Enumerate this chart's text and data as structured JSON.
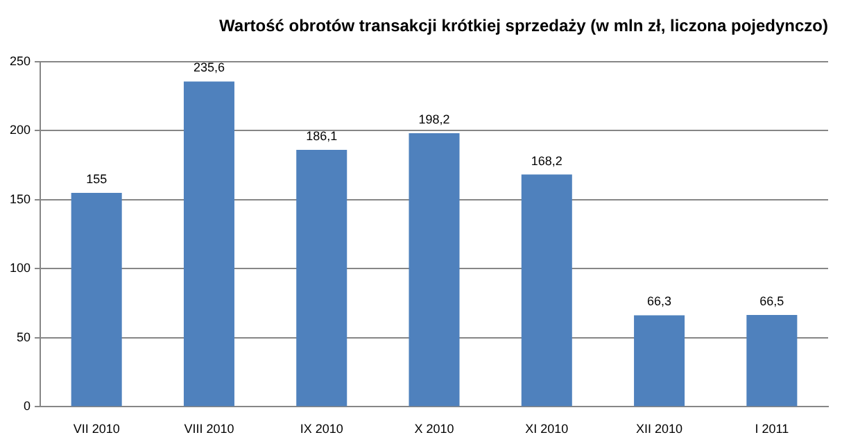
{
  "chart_data": {
    "type": "bar",
    "title": "Wartość obrotów transakcji krótkiej sprzedaży (w mln zł, liczona pojedynczo)",
    "categories": [
      "VII 2010",
      "VIII 2010",
      "IX 2010",
      "X 2010",
      "XI 2010",
      "XII 2010",
      "I 2011"
    ],
    "values": [
      155,
      235.6,
      186.1,
      198.2,
      168.2,
      66.3,
      66.5
    ],
    "value_labels": [
      "155",
      "235,6",
      "186,1",
      "198,2",
      "168,2",
      "66,3",
      "66,5"
    ],
    "color": "#4f81bd",
    "ylim": [
      0,
      250
    ],
    "yticks": [
      0,
      50,
      100,
      150,
      200,
      250
    ],
    "grid": "y"
  }
}
